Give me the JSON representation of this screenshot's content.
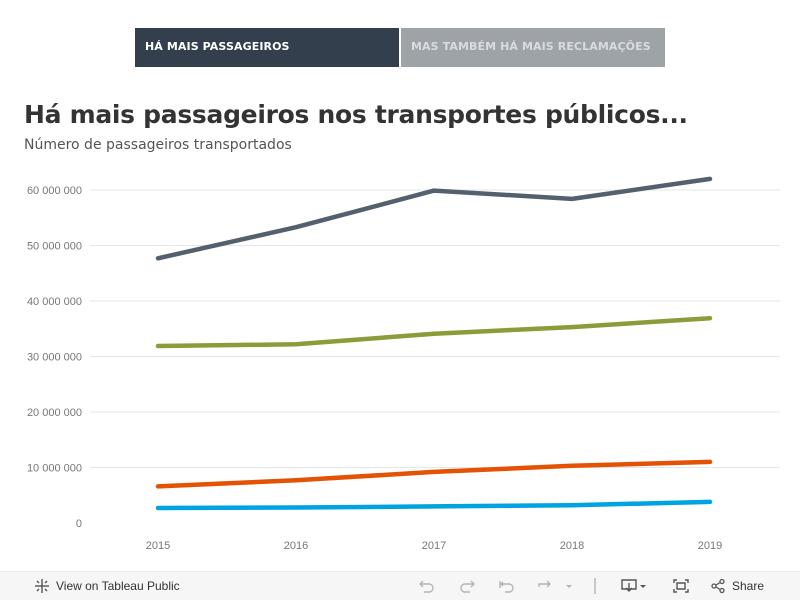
{
  "tabs": [
    {
      "label": "HÁ MAIS PASSAGEIROS",
      "active": true
    },
    {
      "label": "MAS TAMBÉM HÁ MAIS RECLAMAÇÕES",
      "active": false
    }
  ],
  "heading": {
    "title": "Há mais passageiros nos transportes públicos...",
    "subtitle": "Número de passageiros transportados"
  },
  "chart_data": {
    "type": "line",
    "x": [
      "2015",
      "2016",
      "2017",
      "2018",
      "2019"
    ],
    "yticks": [
      0,
      10000000,
      20000000,
      30000000,
      40000000,
      50000000,
      60000000
    ],
    "ytick_labels": [
      "0",
      "10 000 000",
      "20 000 000",
      "30 000 000",
      "40 000 000",
      "50 000 000",
      "60 000 000"
    ],
    "ylim": [
      0,
      62000000
    ],
    "grid": true,
    "series": [
      {
        "color": "#55606e",
        "values": [
          47700000,
          53300000,
          59900000,
          58400000,
          62000000
        ]
      },
      {
        "color": "#8e9b3a",
        "values": [
          31900000,
          32200000,
          34100000,
          35300000,
          36900000
        ]
      },
      {
        "color": "#e35205",
        "values": [
          6600000,
          7700000,
          9200000,
          10300000,
          11000000
        ]
      },
      {
        "color": "#00a2e0",
        "values": [
          2700000,
          2800000,
          3000000,
          3200000,
          3800000
        ]
      }
    ]
  },
  "toolbar": {
    "view_label": "View on Tableau Public",
    "share_label": "Share"
  }
}
